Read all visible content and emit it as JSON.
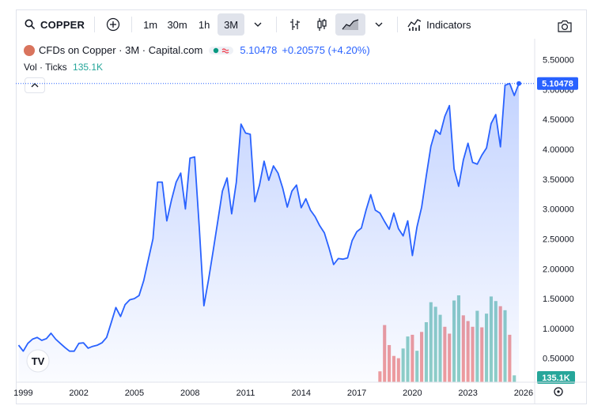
{
  "toolbar": {
    "symbol": "COPPER",
    "intervals": [
      "1m",
      "30m",
      "1h",
      "3M"
    ],
    "active_interval": "3M",
    "indicators_label": "Indicators",
    "icons": [
      "search-icon",
      "add-symbol-icon",
      "chevron-down-icon",
      "bar-style-icon",
      "candles-icon",
      "area-style-icon",
      "indicators-icon",
      "camera-icon"
    ]
  },
  "legend": {
    "title": "CFDs on Copper · 3M · Capital.com",
    "last": "5.10478",
    "change": "+0.20575 (+4.20%)",
    "vol_label": "Vol · Ticks",
    "vol_value": "135.1K"
  },
  "colors": {
    "line": "#2962ff",
    "area_top": "#2962ff",
    "up_vol": "#8fcfc6",
    "down_vol": "#f19c9c",
    "price_tag": "#2962ff",
    "vol_tag": "#26a69a"
  },
  "chart_data": {
    "type": "area",
    "title": "CFDs on Copper · 3M · Capital.com",
    "x_ticks": [
      "1999",
      "2002",
      "2005",
      "2008",
      "2011",
      "2014",
      "2017",
      "2020",
      "2023",
      "2026"
    ],
    "y_ticks": [
      "0.50000",
      "1.00000",
      "1.50000",
      "2.00000",
      "2.50000",
      "3.00000",
      "3.50000",
      "4.00000",
      "4.50000",
      "5.00000",
      "5.50000"
    ],
    "ylim": [
      0.1,
      5.85
    ],
    "xlim": [
      1998.6,
      2026.6
    ],
    "last_price_label": "5.10478",
    "last_volume_label": "135.1K",
    "series": [
      {
        "type": "line",
        "x": [
          1998.75,
          1999.0,
          1999.25,
          1999.5,
          1999.75,
          2000.0,
          2000.25,
          2000.5,
          2000.75,
          2001.0,
          2001.25,
          2001.5,
          2001.75,
          2002.0,
          2002.25,
          2002.5,
          2002.75,
          2003.0,
          2003.25,
          2003.5,
          2003.75,
          2004.0,
          2004.25,
          2004.5,
          2004.75,
          2005.0,
          2005.25,
          2005.5,
          2005.75,
          2006.0,
          2006.25,
          2006.5,
          2006.75,
          2007.0,
          2007.25,
          2007.5,
          2007.75,
          2008.0,
          2008.25,
          2008.5,
          2008.75,
          2009.0,
          2009.25,
          2009.5,
          2009.75,
          2010.0,
          2010.25,
          2010.5,
          2010.75,
          2011.0,
          2011.25,
          2011.5,
          2011.75,
          2012.0,
          2012.25,
          2012.5,
          2012.75,
          2013.0,
          2013.25,
          2013.5,
          2013.75,
          2014.0,
          2014.25,
          2014.5,
          2014.75,
          2015.0,
          2015.25,
          2015.5,
          2015.75,
          2016.0,
          2016.25,
          2016.5,
          2016.75,
          2017.0,
          2017.25,
          2017.5,
          2017.75,
          2018.0,
          2018.25,
          2018.5,
          2018.75,
          2019.0,
          2019.25,
          2019.5,
          2019.75,
          2020.0,
          2020.25,
          2020.5,
          2020.75,
          2021.0,
          2021.25,
          2021.5,
          2021.75,
          2022.0,
          2022.25,
          2022.5,
          2022.75,
          2023.0,
          2023.25,
          2023.5,
          2023.75,
          2024.0,
          2024.25,
          2024.5,
          2024.75,
          2025.0,
          2025.25,
          2025.5,
          2025.75
        ],
        "y": [
          0.72,
          0.62,
          0.75,
          0.82,
          0.85,
          0.8,
          0.83,
          0.92,
          0.82,
          0.75,
          0.68,
          0.62,
          0.62,
          0.75,
          0.76,
          0.67,
          0.7,
          0.72,
          0.76,
          0.85,
          1.1,
          1.35,
          1.2,
          1.4,
          1.48,
          1.5,
          1.55,
          1.8,
          2.15,
          2.5,
          3.45,
          3.45,
          2.8,
          3.15,
          3.45,
          3.6,
          3.0,
          3.85,
          3.87,
          2.7,
          1.38,
          1.82,
          2.3,
          2.8,
          3.3,
          3.52,
          2.92,
          3.45,
          4.42,
          4.27,
          4.25,
          3.12,
          3.4,
          3.8,
          3.48,
          3.72,
          3.6,
          3.35,
          3.03,
          3.3,
          3.4,
          3.02,
          3.17,
          2.98,
          2.87,
          2.72,
          2.6,
          2.35,
          2.07,
          2.17,
          2.16,
          2.18,
          2.47,
          2.62,
          2.68,
          2.98,
          3.24,
          2.98,
          2.93,
          2.79,
          2.66,
          2.93,
          2.67,
          2.55,
          2.8,
          2.22,
          2.7,
          3.03,
          3.55,
          4.05,
          4.32,
          4.25,
          4.55,
          4.73,
          3.67,
          3.38,
          3.82,
          4.1,
          3.78,
          3.75,
          3.9,
          4.02,
          4.43,
          4.58,
          4.04,
          5.07,
          5.1,
          4.9,
          5.1
        ]
      },
      {
        "type": "bar",
        "name": "Vol · Ticks",
        "x": [
          2018.25,
          2018.5,
          2018.75,
          2019.0,
          2019.25,
          2019.5,
          2019.75,
          2020.0,
          2020.25,
          2020.5,
          2020.75,
          2021.0,
          2021.25,
          2021.5,
          2021.75,
          2022.0,
          2022.25,
          2022.5,
          2022.75,
          2023.0,
          2023.25,
          2023.5,
          2023.75,
          2024.0,
          2024.25,
          2024.5,
          2024.75,
          2025.0,
          2025.25,
          2025.5
        ],
        "values": [
          0.19,
          1.0,
          0.65,
          0.46,
          0.42,
          0.59,
          0.8,
          0.83,
          0.55,
          0.88,
          1.05,
          1.4,
          1.32,
          1.18,
          0.97,
          0.85,
          1.43,
          1.52,
          1.17,
          1.07,
          0.97,
          1.25,
          0.96,
          1.2,
          1.5,
          1.42,
          1.33,
          1.26,
          0.83,
          0.12
        ],
        "down": [
          true,
          true,
          true,
          true,
          true,
          false,
          false,
          true,
          false,
          true,
          false,
          false,
          false,
          false,
          true,
          true,
          false,
          false,
          true,
          true,
          true,
          false,
          true,
          false,
          false,
          false,
          true,
          false,
          true,
          false
        ]
      }
    ]
  }
}
